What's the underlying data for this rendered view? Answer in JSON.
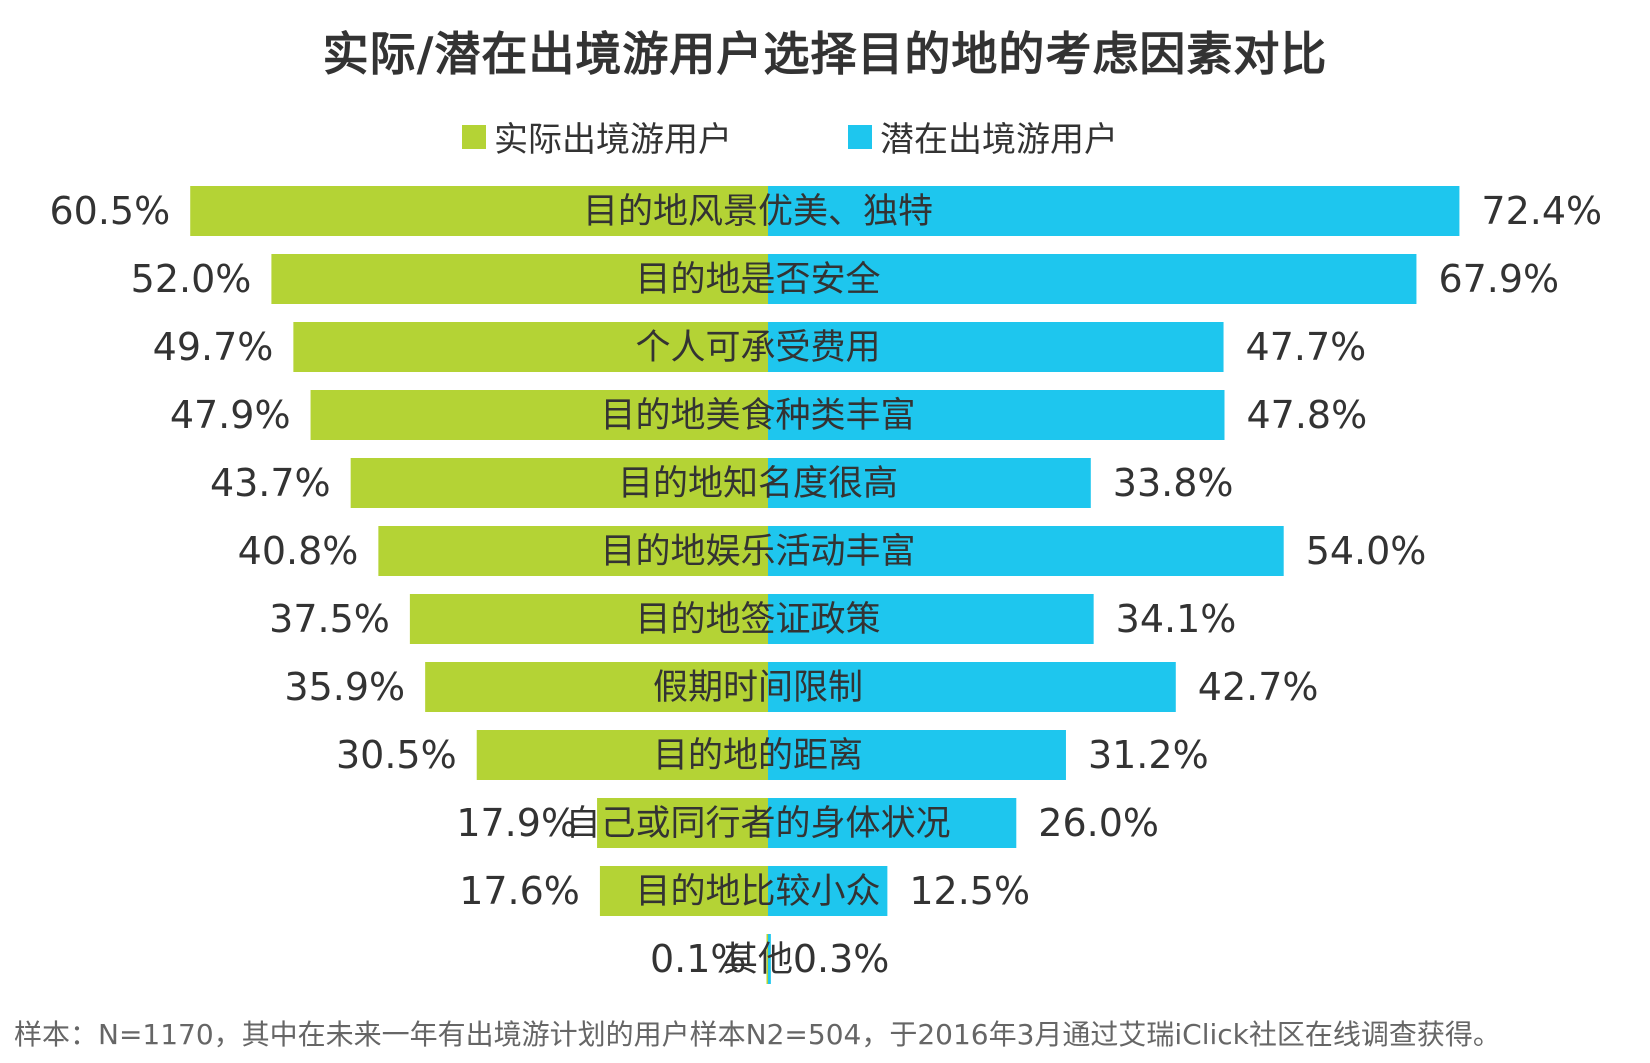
{
  "chart_data": {
    "type": "bar",
    "orientation": "horizontal-diverging",
    "title": "实际/潜在出境游用户选择目的地的考虑因素对比",
    "categories": [
      "目的地风景优美、独特",
      "目的地是否安全",
      "个人可承受费用",
      "目的地美食种类丰富",
      "目的地知名度很高",
      "目的地娱乐活动丰富",
      "目的地签证政策",
      "假期时间限制",
      "目的地的距离",
      "自己或同行者的身体状况",
      "目的地比较小众",
      "其他"
    ],
    "series": [
      {
        "name": "实际出境游用户",
        "color": "#B4D335",
        "values": [
          60.5,
          52.0,
          49.7,
          47.9,
          43.7,
          40.8,
          37.5,
          35.9,
          30.5,
          17.9,
          17.6,
          0.1
        ],
        "labels": [
          "60.5%",
          "52.0%",
          "49.7%",
          "47.9%",
          "43.7%",
          "40.8%",
          "37.5%",
          "35.9%",
          "30.5%",
          "17.9%",
          "17.6%",
          "0.1%"
        ]
      },
      {
        "name": "潜在出境游用户",
        "color": "#1EC6EE",
        "values": [
          72.4,
          67.9,
          47.7,
          47.8,
          33.8,
          54.0,
          34.1,
          42.7,
          31.2,
          26.0,
          12.5,
          0.3
        ],
        "labels": [
          "72.4%",
          "67.9%",
          "47.7%",
          "47.8%",
          "33.8%",
          "54.0%",
          "34.1%",
          "42.7%",
          "31.2%",
          "26.0%",
          "12.5%",
          "0.3%"
        ]
      }
    ],
    "unit": "%",
    "legend_position": "top-center"
  },
  "footnote": "样本：N=1170，其中在未来一年有出境游计划的用户样本N2=504，于2016年3月通过艾瑞iClick社区在线调查获得。"
}
